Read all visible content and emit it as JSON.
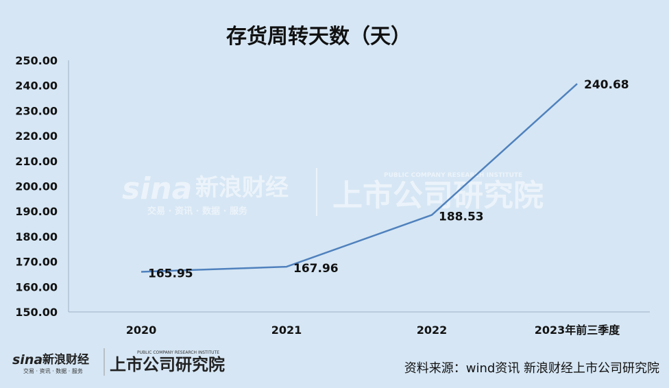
{
  "chart_data": {
    "type": "line",
    "title": "存货周转天数（天）",
    "categories": [
      "2020",
      "2021",
      "2022",
      "2023年前三季度"
    ],
    "values": [
      165.95,
      167.96,
      188.53,
      240.68
    ],
    "data_labels": [
      "165.95",
      "167.96",
      "188.53",
      "240.68"
    ],
    "y_ticks": [
      "150.00",
      "160.00",
      "170.00",
      "180.00",
      "190.00",
      "200.00",
      "210.00",
      "220.00",
      "230.00",
      "240.00",
      "250.00"
    ],
    "ylim": [
      150,
      250
    ],
    "grid": false,
    "legend": "none",
    "line_color": "#4f81bd",
    "xlabel": "",
    "ylabel": ""
  },
  "watermark": {
    "brand": "sina",
    "name": "新浪财经",
    "tagline": "交易 · 资讯 · 数据 · 服务",
    "institute": "上市公司研究院",
    "institute_en": "PUBLIC COMPANY RESEARCH INSTITUTE"
  },
  "footer": {
    "logo_brand": "sina",
    "logo_name": "新浪财经",
    "logo_tagline": "交易 · 资讯 · 数据 · 服务",
    "logo_institute": "上市公司研究院",
    "logo_institute_en": "PUBLIC COMPANY RESEARCH INSTITUTE",
    "source": "资料来源：wind资讯 新浪财经上市公司研究院"
  }
}
